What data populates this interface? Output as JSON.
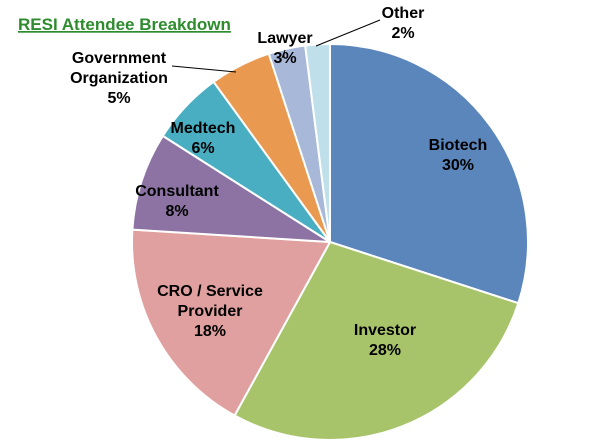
{
  "chart_data": {
    "type": "pie",
    "title": "RESI Attendee Breakdown",
    "slices": [
      {
        "category": "Biotech",
        "percent_label": "30%",
        "value": 30,
        "color": "#5b86bb"
      },
      {
        "category": "Investor",
        "percent_label": "28%",
        "value": 28,
        "color": "#a8c46a"
      },
      {
        "category": "CRO / Service Provider",
        "percent_label": "18%",
        "value": 18,
        "color": "#e0a09f"
      },
      {
        "category": "Consultant",
        "percent_label": "8%",
        "value": 8,
        "color": "#8c73a3"
      },
      {
        "category": "Medtech",
        "percent_label": "6%",
        "value": 6,
        "color": "#4aaec3"
      },
      {
        "category": "Government Organization",
        "percent_label": "5%",
        "value": 5,
        "color": "#e99a50"
      },
      {
        "category": "Lawyer",
        "percent_label": "3%",
        "value": 3,
        "color": "#a8b8d8"
      },
      {
        "category": "Other",
        "percent_label": "2%",
        "value": 2,
        "color": "#bfe0ea"
      }
    ],
    "start_angle": "12 o'clock",
    "direction": "clockwise",
    "legend": "none",
    "data_labels": "category and percent"
  }
}
